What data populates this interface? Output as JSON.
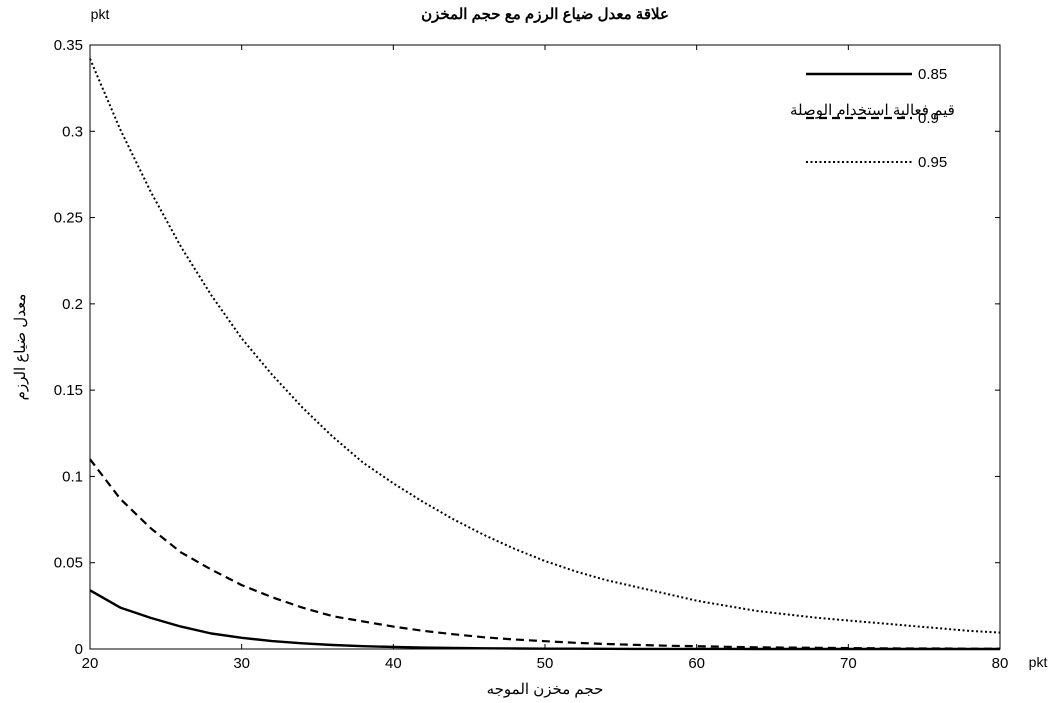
{
  "chart_data": {
    "type": "line",
    "title": "علاقة معدل ضياع الرزم  مع حجم المخزن",
    "xlabel": "حجم مخزن الموجه",
    "ylabel": "معدل ضياع الرزم",
    "x_unit": "pkt",
    "y_unit": "pkt",
    "xlim": [
      20,
      80
    ],
    "ylim": [
      0,
      0.35
    ],
    "x_ticks": [
      20,
      30,
      40,
      50,
      60,
      70,
      80
    ],
    "x_tick_labels": [
      "20",
      "30",
      "40",
      "50",
      "60",
      "70",
      "80"
    ],
    "y_ticks": [
      0,
      0.05,
      0.1,
      0.15,
      0.2,
      0.25,
      0.3,
      0.35
    ],
    "y_tick_labels": [
      "0",
      "0.05",
      "0.1",
      "0.15",
      "0.2",
      "0.25",
      "0.3",
      "0.35"
    ],
    "grid": false,
    "legend_title": "قيم فعالية استخدام الوصلة",
    "legend_position": "top-right",
    "x": [
      20,
      22,
      24,
      26,
      28,
      30,
      32,
      34,
      36,
      38,
      40,
      42,
      44,
      46,
      48,
      50,
      52,
      54,
      56,
      58,
      60,
      62,
      64,
      66,
      68,
      70,
      72,
      74,
      76,
      78,
      80
    ],
    "series": [
      {
        "name": "0.85",
        "style": "solid",
        "values": [
          0.034,
          0.024,
          0.018,
          0.013,
          0.009,
          0.0065,
          0.0046,
          0.0033,
          0.0023,
          0.0016,
          0.0012,
          0.0008,
          0.0006,
          0.0004,
          0.0003,
          0.0002,
          0.00015,
          0.0001,
          8e-05,
          6e-05,
          4e-05,
          3e-05,
          2e-05,
          2e-05,
          1e-05,
          1e-05,
          1e-05,
          0.0,
          0.0,
          0.0,
          0.0
        ]
      },
      {
        "name": "0.9",
        "style": "dashed",
        "values": [
          0.11,
          0.087,
          0.07,
          0.056,
          0.046,
          0.037,
          0.03,
          0.024,
          0.019,
          0.016,
          0.013,
          0.0105,
          0.0085,
          0.0068,
          0.0055,
          0.0045,
          0.0036,
          0.0029,
          0.0024,
          0.0019,
          0.0016,
          0.0013,
          0.001,
          0.0008,
          0.0007,
          0.0005,
          0.0004,
          0.0003,
          0.0003,
          0.0002,
          0.0002
        ]
      },
      {
        "name": "0.95",
        "style": "dotted",
        "values": [
          0.342,
          0.301,
          0.265,
          0.233,
          0.205,
          0.18,
          0.159,
          0.14,
          0.123,
          0.108,
          0.096,
          0.085,
          0.075,
          0.066,
          0.058,
          0.051,
          0.045,
          0.04,
          0.036,
          0.032,
          0.028,
          0.025,
          0.022,
          0.02,
          0.018,
          0.0165,
          0.015,
          0.0135,
          0.012,
          0.0105,
          0.0095
        ]
      }
    ]
  }
}
